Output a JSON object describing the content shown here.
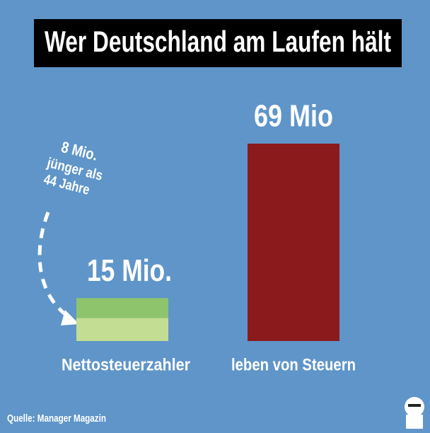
{
  "chart_data": {
    "type": "bar",
    "title": "Wer Deutschland am Laufen hält",
    "categories": [
      "Nettosteuerzahler",
      "leben von Steuern"
    ],
    "values": [
      15,
      69
    ],
    "value_labels": [
      "15 Mio.",
      "69 Mio"
    ],
    "colors": [
      "#8ec46c",
      "#8a1a1c"
    ],
    "highlight": {
      "value": 8,
      "value_label": "8 Mio.",
      "text": [
        "jünger als",
        "44 Jahre"
      ],
      "color": "#c3de93"
    },
    "source": "Quelle: Manager Magazin"
  }
}
